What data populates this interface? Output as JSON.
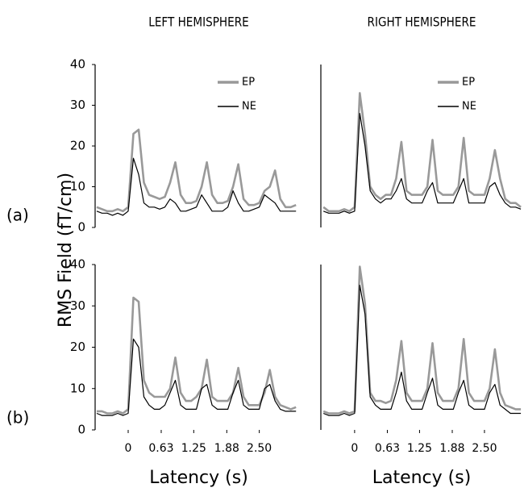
{
  "ylabel": "RMS Field (fT/cm)",
  "chart_data": [
    {
      "type": "line",
      "title": "LEFT HEMISPHERE",
      "label": "(a)",
      "legend": "top-right",
      "xlim": [
        -0.63,
        3.32
      ],
      "ylim": [
        0,
        40
      ],
      "yticks": [
        0,
        10,
        20,
        30,
        40
      ],
      "x": [
        -0.6,
        -0.5,
        -0.4,
        -0.3,
        -0.2,
        -0.1,
        0,
        0.1,
        0.2,
        0.3,
        0.4,
        0.5,
        0.6,
        0.7,
        0.8,
        0.9,
        1.0,
        1.1,
        1.2,
        1.3,
        1.4,
        1.5,
        1.6,
        1.7,
        1.8,
        1.9,
        2.0,
        2.1,
        2.2,
        2.3,
        2.4,
        2.5,
        2.6,
        2.7,
        2.8,
        2.9,
        3.0,
        3.1,
        3.2
      ],
      "series": [
        {
          "name": "EP",
          "color": "#999999",
          "values": [
            5,
            4.5,
            4,
            4,
            4.5,
            4,
            5,
            23,
            24,
            11,
            8,
            7.5,
            7,
            7.5,
            11,
            16,
            8,
            6,
            6,
            6.5,
            10,
            16,
            8,
            6,
            6,
            6.5,
            10,
            15.5,
            7,
            5.5,
            5.5,
            6,
            9,
            10,
            14,
            7,
            5,
            5,
            5.5
          ]
        },
        {
          "name": "NE",
          "color": "#000000",
          "values": [
            4,
            3.5,
            3.5,
            3,
            3.5,
            3,
            4,
            17,
            13,
            6,
            5,
            5,
            4.5,
            5,
            7,
            6,
            4,
            4,
            4.5,
            5,
            8,
            6,
            4,
            4,
            4,
            5,
            9,
            6,
            4,
            4,
            4.5,
            5,
            8,
            7,
            6,
            4,
            4,
            4,
            4
          ]
        }
      ]
    },
    {
      "type": "line",
      "title": "RIGHT HEMISPHERE",
      "legend": "top-right",
      "xlim": [
        -0.65,
        3.23
      ],
      "ylim": [
        0,
        40
      ],
      "x": [
        -0.6,
        -0.5,
        -0.4,
        -0.3,
        -0.2,
        -0.1,
        0,
        0.1,
        0.2,
        0.3,
        0.4,
        0.5,
        0.6,
        0.7,
        0.8,
        0.9,
        1.0,
        1.1,
        1.2,
        1.3,
        1.4,
        1.5,
        1.6,
        1.7,
        1.8,
        1.9,
        2.0,
        2.1,
        2.2,
        2.3,
        2.4,
        2.5,
        2.6,
        2.7,
        2.8,
        2.9,
        3.0,
        3.1,
        3.2
      ],
      "series": [
        {
          "name": "EP",
          "color": "#999999",
          "values": [
            5,
            4,
            4,
            4,
            4.5,
            4,
            5,
            33,
            23,
            10,
            8,
            7,
            8,
            8,
            12,
            21,
            9,
            8,
            8,
            8,
            10,
            21.5,
            9,
            8,
            8,
            8,
            10,
            22,
            9,
            8,
            8,
            8,
            12,
            19,
            12,
            7,
            6,
            6,
            5
          ]
        },
        {
          "name": "NE",
          "color": "#000000",
          "values": [
            4,
            3.5,
            3.5,
            3.5,
            4,
            3.5,
            4,
            28,
            20,
            9,
            7,
            6,
            7,
            7,
            9,
            12,
            7,
            6,
            6,
            6,
            9,
            11,
            6,
            6,
            6,
            6,
            9,
            12,
            6,
            6,
            6,
            6,
            10,
            11,
            8,
            6,
            5,
            5,
            4.5
          ]
        }
      ]
    },
    {
      "type": "line",
      "label": "(b)",
      "xlabel": "Latency (s)",
      "xlim": [
        -0.63,
        3.32
      ],
      "ylim": [
        0,
        40
      ],
      "yticks": [
        0,
        10,
        20,
        30,
        40
      ],
      "xticks": [
        0,
        0.63,
        1.25,
        1.88,
        {
          "value": 2.5,
          "label": "2.50"
        }
      ],
      "x": [
        -0.6,
        -0.5,
        -0.4,
        -0.3,
        -0.2,
        -0.1,
        0,
        0.1,
        0.2,
        0.3,
        0.4,
        0.5,
        0.6,
        0.7,
        0.8,
        0.9,
        1.0,
        1.1,
        1.2,
        1.3,
        1.4,
        1.5,
        1.6,
        1.7,
        1.8,
        1.9,
        2.0,
        2.1,
        2.2,
        2.3,
        2.4,
        2.5,
        2.6,
        2.7,
        2.8,
        2.9,
        3.0,
        3.1,
        3.2
      ],
      "series": [
        {
          "color": "#999999",
          "values": [
            4.5,
            4.5,
            4,
            4,
            4.5,
            4,
            5,
            32,
            31,
            12,
            9,
            8,
            8,
            8,
            10,
            17.5,
            9,
            7,
            7,
            8,
            10,
            17,
            8,
            7,
            7,
            7,
            9,
            15,
            8,
            6,
            6,
            6,
            9,
            14.5,
            8,
            6,
            5.5,
            5,
            5.5
          ]
        },
        {
          "color": "#000000",
          "values": [
            4,
            3.5,
            3.5,
            3.5,
            4,
            3.5,
            4,
            22,
            20,
            8,
            6,
            5,
            5,
            6,
            9,
            12,
            6,
            5,
            5,
            5,
            10,
            11,
            6,
            5,
            5,
            5,
            9,
            12,
            6,
            5,
            5,
            5,
            10,
            11,
            7,
            5,
            4.5,
            4.5,
            4.5
          ]
        }
      ]
    },
    {
      "type": "line",
      "xlabel": "Latency (s)",
      "xlim": [
        -0.65,
        3.23
      ],
      "ylim": [
        0,
        40
      ],
      "xticks": [
        0,
        0.63,
        1.25,
        1.88,
        {
          "value": 2.5,
          "label": "2.50"
        }
      ],
      "x": [
        -0.6,
        -0.5,
        -0.4,
        -0.3,
        -0.2,
        -0.1,
        0,
        0.1,
        0.2,
        0.3,
        0.4,
        0.5,
        0.6,
        0.7,
        0.8,
        0.9,
        1.0,
        1.1,
        1.2,
        1.3,
        1.4,
        1.5,
        1.6,
        1.7,
        1.8,
        1.9,
        2.0,
        2.1,
        2.2,
        2.3,
        2.4,
        2.5,
        2.6,
        2.7,
        2.8,
        2.9,
        3.0,
        3.1,
        3.2
      ],
      "series": [
        {
          "color": "#999999",
          "values": [
            4.5,
            4,
            4,
            4,
            4.5,
            4,
            4.5,
            39.5,
            30.5,
            9,
            7,
            7,
            6.5,
            7,
            12,
            21.5,
            9,
            7,
            7,
            7,
            10,
            21,
            9,
            7,
            7,
            7,
            10,
            22,
            9,
            7,
            7,
            7,
            10,
            19.5,
            9,
            6,
            5.5,
            5,
            5
          ]
        },
        {
          "color": "#000000",
          "values": [
            4,
            3.5,
            3.5,
            3.5,
            4,
            3.5,
            4,
            35,
            28,
            8,
            6,
            5,
            5,
            5,
            9,
            14,
            7,
            5,
            5,
            5,
            9,
            12.5,
            6,
            5,
            5,
            5,
            9,
            12,
            6,
            5,
            5,
            5,
            9,
            11,
            6,
            5,
            4,
            4,
            4
          ]
        }
      ]
    }
  ]
}
